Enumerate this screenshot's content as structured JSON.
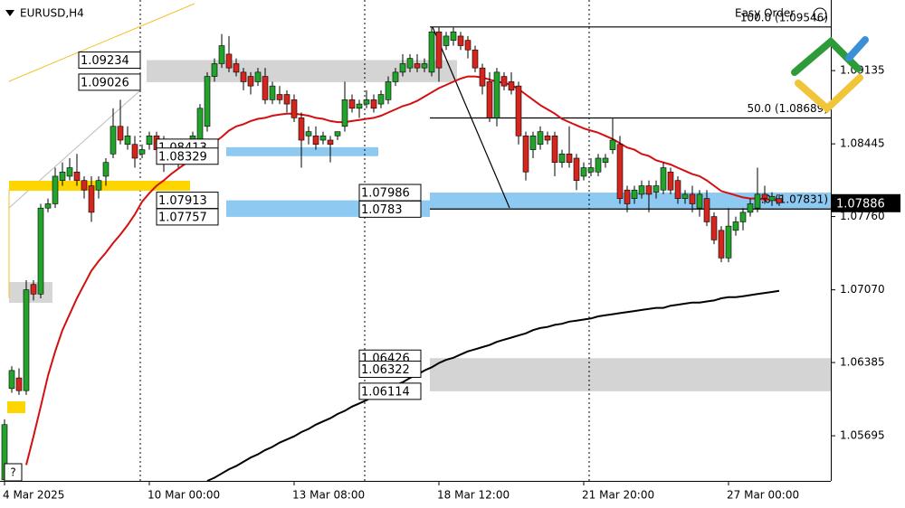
{
  "chart_data": {
    "type": "candlestick",
    "symbol": "EURUSD,H4",
    "tool": "Easy Order",
    "categories": [
      "4 Mar 2025",
      null,
      null,
      null,
      null,
      null,
      null,
      null,
      null,
      null,
      null,
      null,
      null,
      null,
      null,
      null,
      null,
      null,
      null,
      null,
      "10 Mar 00:00",
      null,
      null,
      null,
      null,
      null,
      null,
      null,
      null,
      null,
      null,
      null,
      null,
      null,
      null,
      null,
      null,
      null,
      null,
      null,
      "13 Mar 08:00",
      null,
      null,
      null,
      null,
      null,
      null,
      null,
      null,
      null,
      null,
      null,
      null,
      null,
      null,
      null,
      null,
      null,
      null,
      null,
      "18 Mar 12:00",
      null,
      null,
      null,
      null,
      null,
      null,
      null,
      null,
      null,
      null,
      null,
      null,
      null,
      null,
      null,
      null,
      null,
      null,
      null,
      "21 Mar 20:00",
      null,
      null,
      null,
      null,
      null,
      null,
      null,
      null,
      null,
      null,
      null,
      null,
      null,
      null,
      null,
      null,
      null,
      null,
      null,
      "27 Mar 00:00",
      null,
      null,
      null,
      null,
      null,
      null,
      null
    ],
    "ohlc": [
      [
        1.0528,
        1.0585,
        1.0528,
        1.058
      ],
      [
        1.0614,
        1.0635,
        1.061,
        1.0631
      ],
      [
        1.0624,
        1.0633,
        1.0608,
        1.0612
      ],
      [
        1.0612,
        1.0716,
        1.0608,
        1.0707
      ],
      [
        1.0712,
        1.0716,
        1.0697,
        1.0703
      ],
      [
        1.0703,
        1.0788,
        1.0699,
        1.0784
      ],
      [
        1.0784,
        1.0793,
        1.078,
        1.0788
      ],
      [
        1.0788,
        1.0822,
        1.0784,
        1.0814
      ],
      [
        1.081,
        1.0827,
        1.0805,
        1.0818
      ],
      [
        1.0814,
        1.0831,
        1.081,
        1.0822
      ],
      [
        1.0818,
        1.0835,
        1.0805,
        1.081
      ],
      [
        1.081,
        1.0814,
        1.0793,
        1.0801
      ],
      [
        1.0805,
        1.0814,
        1.0771,
        1.078
      ],
      [
        1.0801,
        1.0814,
        1.0793,
        1.081
      ],
      [
        1.0814,
        1.0831,
        1.0805,
        1.0827
      ],
      [
        1.0835,
        1.0878,
        1.0831,
        1.0861
      ],
      [
        1.0861,
        1.0886,
        1.0844,
        1.0848
      ],
      [
        1.0844,
        1.0861,
        1.0839,
        1.0852
      ],
      [
        1.0844,
        1.0852,
        1.0822,
        1.0831
      ],
      [
        1.0835,
        1.0844,
        1.0831,
        1.0839
      ],
      [
        1.0844,
        1.0856,
        1.0839,
        1.0852
      ],
      [
        1.0852,
        1.0856,
        1.0835,
        1.0839
      ],
      [
        1.0848,
        1.0852,
        1.0818,
        1.0831
      ],
      [
        1.0839,
        1.0844,
        1.0827,
        1.0831
      ],
      [
        1.0835,
        1.0844,
        1.0822,
        1.0827
      ],
      [
        1.0835,
        1.0848,
        1.0827,
        1.0844
      ],
      [
        1.0844,
        1.0856,
        1.0839,
        1.0852
      ],
      [
        1.0848,
        1.0882,
        1.0844,
        1.0878
      ],
      [
        1.0861,
        1.0912,
        1.0856,
        1.0908
      ],
      [
        1.0908,
        1.0925,
        1.0903,
        1.092
      ],
      [
        1.092,
        1.0948,
        1.0916,
        1.0937
      ],
      [
        1.0929,
        1.0946,
        1.0912,
        1.0916
      ],
      [
        1.092,
        1.0925,
        1.0908,
        1.0912
      ],
      [
        1.0912,
        1.0916,
        1.0895,
        1.0903
      ],
      [
        1.0908,
        1.0912,
        1.0891,
        1.0899
      ],
      [
        1.0903,
        1.0916,
        1.0899,
        1.0912
      ],
      [
        1.0908,
        1.0916,
        1.0882,
        1.0886
      ],
      [
        1.0886,
        1.0903,
        1.0882,
        1.0899
      ],
      [
        1.0891,
        1.0899,
        1.0882,
        1.0886
      ],
      [
        1.0891,
        1.0895,
        1.0874,
        1.0882
      ],
      [
        1.0886,
        1.0891,
        1.0865,
        1.0869
      ],
      [
        1.0869,
        1.0874,
        1.0822,
        1.0848
      ],
      [
        1.0852,
        1.0861,
        1.0844,
        1.0856
      ],
      [
        1.0852,
        1.0861,
        1.0839,
        1.0844
      ],
      [
        1.0848,
        1.0856,
        1.0844,
        1.0852
      ],
      [
        1.0848,
        1.0852,
        1.0827,
        1.0844
      ],
      [
        1.0852,
        1.0856,
        1.0848,
        1.0856
      ],
      [
        1.0861,
        1.0903,
        1.0856,
        1.0886
      ],
      [
        1.0886,
        1.0891,
        1.0874,
        1.0878
      ],
      [
        1.0878,
        1.0886,
        1.0869,
        1.0882
      ],
      [
        1.0882,
        1.0895,
        1.0878,
        1.0886
      ],
      [
        1.0886,
        1.0891,
        1.0874,
        1.0878
      ],
      [
        1.0882,
        1.0895,
        1.0878,
        1.0891
      ],
      [
        1.0886,
        1.0908,
        1.0882,
        1.0903
      ],
      [
        1.0903,
        1.0916,
        1.0899,
        1.0912
      ],
      [
        1.0912,
        1.0929,
        1.0908,
        1.092
      ],
      [
        1.0916,
        1.0929,
        1.0912,
        1.0925
      ],
      [
        1.092,
        1.0929,
        1.0912,
        1.0916
      ],
      [
        1.0916,
        1.0925,
        1.0912,
        1.092
      ],
      [
        1.0912,
        1.0954,
        1.0908,
        1.095
      ],
      [
        1.095,
        1.0954,
        1.0903,
        1.0916
      ],
      [
        1.0937,
        1.095,
        1.0933,
        1.0946
      ],
      [
        1.0942,
        1.0954,
        1.0937,
        1.095
      ],
      [
        1.0946,
        1.095,
        1.0933,
        1.0937
      ],
      [
        1.0942,
        1.0946,
        1.0925,
        1.0933
      ],
      [
        1.0933,
        1.0937,
        1.0912,
        1.0916
      ],
      [
        1.0916,
        1.092,
        1.0891,
        1.0899
      ],
      [
        1.0903,
        1.0912,
        1.0865,
        1.0869
      ],
      [
        1.0869,
        1.0916,
        1.0861,
        1.0912
      ],
      [
        1.0908,
        1.0912,
        1.0895,
        1.0899
      ],
      [
        1.0903,
        1.0912,
        1.0891,
        1.0895
      ],
      [
        1.0899,
        1.0903,
        1.0844,
        1.0852
      ],
      [
        1.0852,
        1.0856,
        1.081,
        1.0818
      ],
      [
        1.0839,
        1.0856,
        1.0831,
        1.0852
      ],
      [
        1.0844,
        1.0861,
        1.0839,
        1.0856
      ],
      [
        1.0852,
        1.0856,
        1.0844,
        1.0848
      ],
      [
        1.0852,
        1.0856,
        1.0814,
        1.0827
      ],
      [
        1.0827,
        1.0839,
        1.0822,
        1.0835
      ],
      [
        1.0835,
        1.0861,
        1.0822,
        1.0827
      ],
      [
        1.0831,
        1.0835,
        1.0801,
        1.081
      ],
      [
        1.0814,
        1.0827,
        1.081,
        1.0822
      ],
      [
        1.0818,
        1.0831,
        1.0814,
        1.0822
      ],
      [
        1.0818,
        1.0835,
        1.0814,
        1.0831
      ],
      [
        1.0827,
        1.0835,
        1.0822,
        1.0831
      ],
      [
        1.0839,
        1.0869,
        1.0835,
        1.0848
      ],
      [
        1.0844,
        1.0852,
        1.0788,
        1.0793
      ],
      [
        1.0801,
        1.0805,
        1.078,
        1.0788
      ],
      [
        1.0793,
        1.0805,
        1.0788,
        1.0801
      ],
      [
        1.0797,
        1.081,
        1.0793,
        1.0805
      ],
      [
        1.0805,
        1.081,
        1.078,
        1.0797
      ],
      [
        1.0799,
        1.081,
        1.0793,
        1.0805
      ],
      [
        1.0801,
        1.0827,
        1.0797,
        1.0822
      ],
      [
        1.0818,
        1.0822,
        1.0797,
        1.0801
      ],
      [
        1.081,
        1.0814,
        1.0788,
        1.0793
      ],
      [
        1.0793,
        1.0801,
        1.0788,
        1.0797
      ],
      [
        1.0797,
        1.0805,
        1.078,
        1.0788
      ],
      [
        1.0784,
        1.0801,
        1.0776,
        1.0797
      ],
      [
        1.0793,
        1.0801,
        1.0767,
        1.0771
      ],
      [
        1.0776,
        1.078,
        1.075,
        1.0754
      ],
      [
        1.0763,
        1.0767,
        1.0733,
        1.0737
      ],
      [
        1.0737,
        1.0784,
        1.0733,
        1.0767
      ],
      [
        1.0763,
        1.0776,
        1.0758,
        1.0771
      ],
      [
        1.0771,
        1.0784,
        1.0763,
        1.078
      ],
      [
        1.078,
        1.0793,
        1.0776,
        1.0788
      ],
      [
        1.0784,
        1.0822,
        1.078,
        1.0797
      ],
      [
        1.0797,
        1.0805,
        1.0788,
        1.0793
      ],
      [
        1.0791,
        1.0799,
        1.0786,
        1.0795
      ],
      [
        1.0793,
        1.0797,
        1.0786,
        1.0789
      ]
    ],
    "up_color": "#23a32c",
    "down_color": "#d3261f",
    "series": [
      {
        "color": "#d40f0f",
        "values": [
          null,
          null,
          null,
          1.0542,
          1.0569,
          1.0597,
          1.0626,
          1.0649,
          1.0669,
          1.0684,
          1.0699,
          1.0712,
          1.0725,
          1.0734,
          1.0742,
          1.0751,
          1.0759,
          1.0768,
          1.0778,
          1.079,
          1.0798,
          1.0805,
          1.081,
          1.0816,
          1.0821,
          1.0826,
          1.0831,
          1.0836,
          1.0841,
          1.0846,
          1.0851,
          1.0857,
          1.0861,
          1.0863,
          1.0866,
          1.0868,
          1.0869,
          1.0871,
          1.0872,
          1.0873,
          1.0873,
          1.0872,
          1.0871,
          1.0869,
          1.0868,
          1.0866,
          1.0865,
          1.0865,
          1.0866,
          1.0867,
          1.0868,
          1.0869,
          1.0871,
          1.0874,
          1.0877,
          1.088,
          1.0882,
          1.0885,
          1.0889,
          1.0893,
          1.0897,
          1.09,
          1.0903,
          1.0906,
          1.0908,
          1.0908,
          1.0907,
          1.0905,
          1.0903,
          1.0902,
          1.09,
          1.0896,
          1.0891,
          1.0886,
          1.0881,
          1.0877,
          1.0873,
          1.0868,
          1.0865,
          1.0862,
          1.0859,
          1.0857,
          1.0855,
          1.0852,
          1.0849,
          1.0845,
          1.0841,
          1.0839,
          1.0835,
          1.0833,
          1.0829,
          1.0827,
          1.0825,
          1.0822,
          1.0819,
          1.0816,
          1.0814,
          1.081,
          1.0805,
          1.08,
          1.0798,
          1.0796,
          1.0794,
          1.0793,
          1.0793,
          1.0792,
          1.0792,
          1.0791
        ]
      },
      {
        "color": "#000000",
        "values": [
          null,
          null,
          null,
          null,
          null,
          null,
          null,
          null,
          null,
          null,
          null,
          null,
          null,
          null,
          null,
          null,
          null,
          null,
          null,
          null,
          null,
          null,
          null,
          null,
          null,
          null,
          null,
          null,
          1.0527,
          1.053,
          1.0534,
          1.0538,
          1.0541,
          1.0545,
          1.0549,
          1.0552,
          1.0556,
          1.0559,
          1.0563,
          1.0566,
          1.0569,
          1.0573,
          1.0576,
          1.058,
          1.0583,
          1.0586,
          1.059,
          1.0593,
          1.0597,
          1.06,
          1.0603,
          1.0607,
          1.061,
          1.0614,
          1.0617,
          1.062,
          1.0624,
          1.0627,
          1.0631,
          1.0634,
          1.0638,
          1.0641,
          1.0643,
          1.0646,
          1.0649,
          1.0651,
          1.0653,
          1.0655,
          1.0658,
          1.066,
          1.0662,
          1.0664,
          1.0666,
          1.0669,
          1.0671,
          1.0672,
          1.0674,
          1.0675,
          1.0677,
          1.0678,
          1.0679,
          1.068,
          1.0682,
          1.0683,
          1.0684,
          1.0685,
          1.0686,
          1.0687,
          1.0688,
          1.0689,
          1.069,
          1.069,
          1.0692,
          1.0693,
          1.0694,
          1.0695,
          1.0695,
          1.0696,
          1.0697,
          1.0699,
          1.07,
          1.07,
          1.0701,
          1.0702,
          1.0703,
          1.0704,
          1.0705,
          1.0706
        ]
      }
    ],
    "ylim": [
      1.0527,
      1.098
    ],
    "yticks": [
      1.05695,
      1.06385,
      {
        "value": 1.0707,
        "label": "1.07070"
      },
      {
        "value": 1.0776,
        "label": "1.07760"
      },
      1.08445,
      1.09135
    ],
    "grid": false,
    "current_price": 1.07886,
    "levels": [
      1.09234,
      1.09026,
      1.08413,
      1.08329,
      1.07913,
      1.07757,
      1.07986,
      1.0783,
      1.06426,
      1.06322,
      1.06114
    ],
    "fib": [
      {
        "value": 1.09546,
        "label": "100.0 (1.09546)"
      },
      {
        "value": 1.08689,
        "label": "50.0 (1.08689)"
      },
      {
        "value": 1.07831,
        "label": "0.0 (1.07831)"
      }
    ]
  }
}
